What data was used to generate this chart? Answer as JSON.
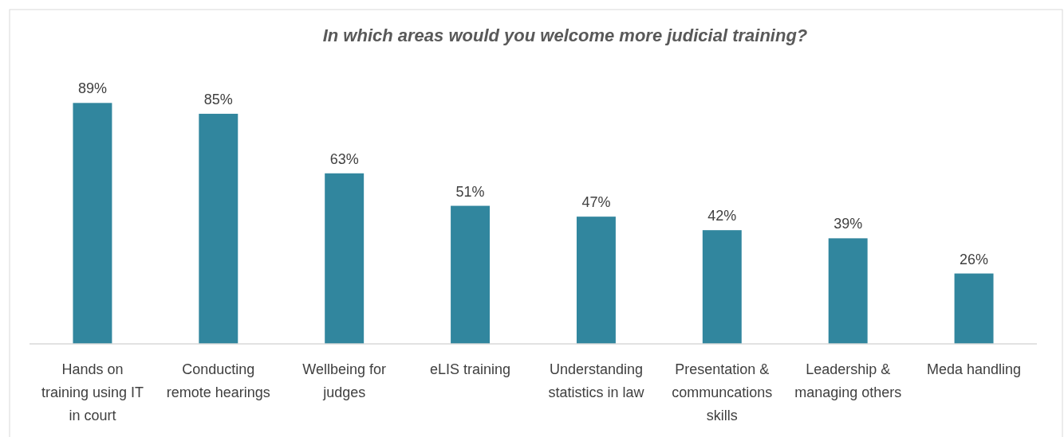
{
  "chart_data": {
    "type": "bar",
    "title": "In which areas would you welcome more judicial training?",
    "categories": [
      "Hands on training using IT in court",
      "Conducting remote hearings",
      "Wellbeing for judges",
      "eLIS training",
      "Understanding statistics in law",
      "Presentation & communcations skills",
      "Leadership & managing others",
      "Meda handling"
    ],
    "values": [
      89,
      85,
      63,
      51,
      47,
      42,
      39,
      26
    ],
    "value_labels": [
      "89%",
      "85%",
      "63%",
      "51%",
      "47%",
      "42%",
      "39%",
      "26%"
    ],
    "color": "#31869e"
  }
}
